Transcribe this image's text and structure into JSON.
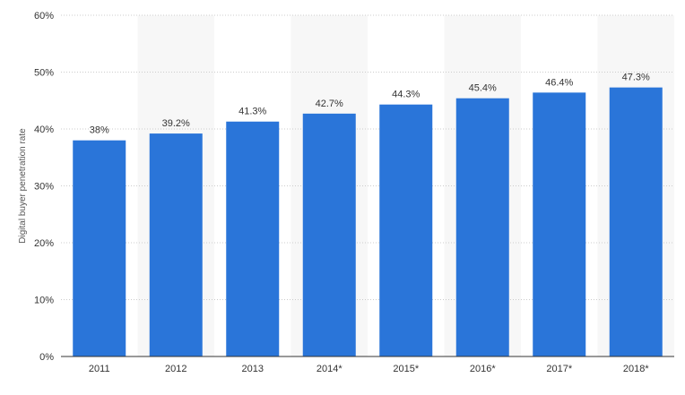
{
  "chart_data": {
    "type": "bar",
    "title": "",
    "xlabel": "",
    "ylabel": "Digital buyer penetration rate",
    "categories": [
      "2011",
      "2012",
      "2013",
      "2014*",
      "2015*",
      "2016*",
      "2017*",
      "2018*"
    ],
    "values": [
      38,
      39.2,
      41.3,
      42.7,
      44.3,
      45.4,
      46.4,
      47.3
    ],
    "data_labels": [
      "38%",
      "39.2%",
      "41.3%",
      "42.7%",
      "44.3%",
      "45.4%",
      "46.4%",
      "47.3%"
    ],
    "ylim": [
      0,
      60
    ],
    "yticks": [
      0,
      10,
      20,
      30,
      40,
      50,
      60
    ],
    "ytick_labels": [
      "0%",
      "10%",
      "20%",
      "30%",
      "40%",
      "50%",
      "60%"
    ],
    "grid": true,
    "legend": "none",
    "colors": {
      "bar": "#2a75d9",
      "band": "#f7f7f7",
      "grid": "#cccccc",
      "axis": "#333333",
      "text": "#333333"
    }
  }
}
